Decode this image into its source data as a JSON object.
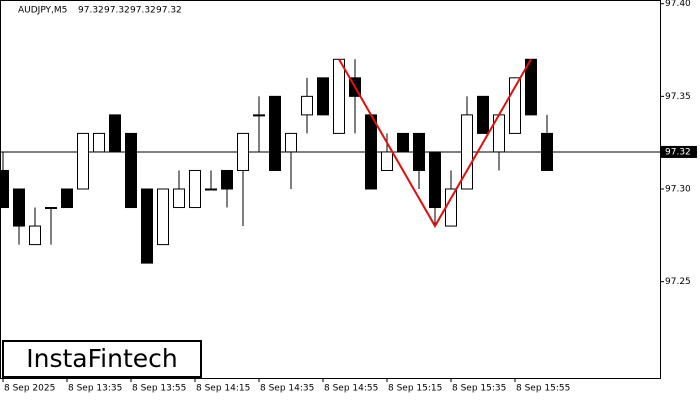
{
  "chart_data": {
    "type": "candlestick",
    "symbol": "AUDJPY,M5",
    "header_values": [
      97.32,
      97.32,
      97.32,
      97.32
    ],
    "logo": "InstaFintech",
    "categories": [
      "8 Sep 2025",
      null,
      null,
      null,
      "8 Sep 13:35",
      null,
      null,
      null,
      "8 Sep 13:55",
      null,
      null,
      null,
      "8 Sep 14:15",
      null,
      null,
      null,
      "8 Sep 14:35",
      null,
      null,
      null,
      "8 Sep 14:55",
      null,
      null,
      null,
      "8 Sep 15:15",
      null,
      null,
      null,
      "8 Sep 15:35",
      null,
      null,
      null,
      "8 Sep 15:55",
      null,
      null
    ],
    "series": [
      {
        "open": [
          97.31,
          97.3,
          97.27,
          97.29,
          97.3,
          97.3,
          97.32,
          97.34,
          97.33,
          97.3,
          97.27,
          97.29,
          97.29,
          97.3,
          97.31,
          97.31,
          97.34,
          97.35,
          97.32,
          97.34,
          97.36,
          97.33,
          97.36,
          97.34,
          97.31,
          97.33,
          97.33,
          97.32,
          97.28,
          97.3,
          97.35,
          97.32,
          97.33,
          97.37,
          97.33
        ],
        "high": [
          97.32,
          97.3,
          97.29,
          97.29,
          97.3,
          97.33,
          97.33,
          97.34,
          97.33,
          97.3,
          97.3,
          97.31,
          97.31,
          97.31,
          97.31,
          97.33,
          97.35,
          97.35,
          97.33,
          97.36,
          97.36,
          97.37,
          97.37,
          97.34,
          97.33,
          97.33,
          97.33,
          97.32,
          97.31,
          97.35,
          97.35,
          97.34,
          97.36,
          97.37,
          97.34
        ],
        "low": [
          97.29,
          97.27,
          97.27,
          97.27,
          97.29,
          97.3,
          97.32,
          97.32,
          97.29,
          97.26,
          97.27,
          97.29,
          97.29,
          97.3,
          97.29,
          97.28,
          97.32,
          97.31,
          97.3,
          97.33,
          97.34,
          97.33,
          97.33,
          97.3,
          97.31,
          97.32,
          97.3,
          97.28,
          97.28,
          97.3,
          97.33,
          97.31,
          97.33,
          97.34,
          97.31
        ],
        "close": [
          97.29,
          97.28,
          97.28,
          97.29,
          97.29,
          97.33,
          97.33,
          97.32,
          97.29,
          97.26,
          97.3,
          97.3,
          97.31,
          97.3,
          97.3,
          97.33,
          97.34,
          97.31,
          97.33,
          97.35,
          97.34,
          97.37,
          97.35,
          97.3,
          97.32,
          97.32,
          97.31,
          97.29,
          97.3,
          97.34,
          97.33,
          97.34,
          97.36,
          97.34,
          97.31
        ]
      }
    ],
    "bull_color": "#ffffff",
    "bear_color": "#000000",
    "current_price": 97.32,
    "pattern": {
      "color": "#e01010",
      "points": [
        {
          "candle": 21,
          "value": 97.37
        },
        {
          "candle": 27,
          "value": 97.28
        },
        {
          "candle": 33,
          "value": 97.37
        }
      ]
    },
    "ylim": [
      97.198,
      97.402
    ],
    "yticks": [
      {
        "value": 97.4,
        "label": "97.40"
      },
      97.35,
      {
        "value": 97.3,
        "label": "97.30"
      },
      97.25
    ]
  }
}
